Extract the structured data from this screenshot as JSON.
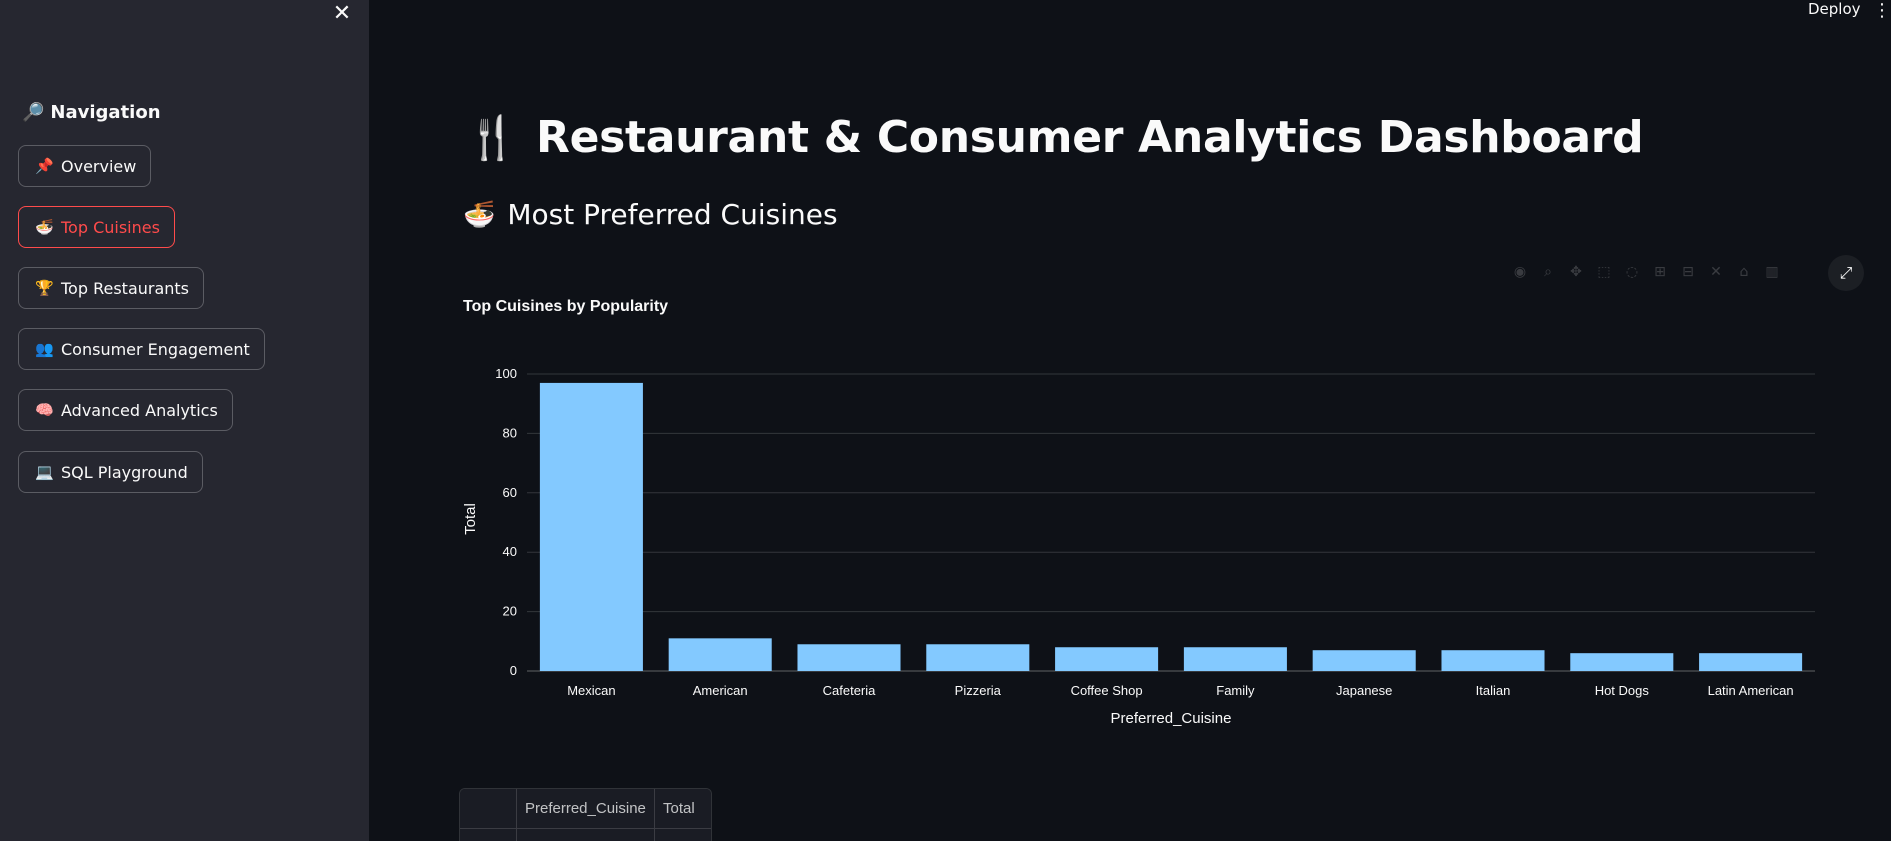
{
  "sidebar": {
    "close_icon": "✕",
    "nav_heading": "Navigation",
    "nav_heading_icon": "🔎",
    "items": [
      {
        "icon": "📌",
        "label": "Overview",
        "active": false
      },
      {
        "icon": "🍜",
        "label": "Top Cuisines",
        "active": true
      },
      {
        "icon": "🏆",
        "label": "Top Restaurants",
        "active": false
      },
      {
        "icon": "👥",
        "label": "Consumer Engagement",
        "active": false
      },
      {
        "icon": "🧠",
        "label": "Advanced Analytics",
        "active": false
      },
      {
        "icon": "💻",
        "label": "SQL Playground",
        "active": false
      }
    ]
  },
  "header": {
    "deploy_label": "Deploy",
    "menu_icon": "⋮"
  },
  "main": {
    "title_icon": "🍴",
    "title": "Restaurant & Consumer Analytics Dashboard",
    "section_icon": "🍜",
    "section_title": "Most Preferred Cuisines",
    "toolbar_icons": [
      "camera-icon",
      "zoom-icon",
      "pan-icon",
      "box-select-icon",
      "lasso-select-icon",
      "zoom-in-icon",
      "zoom-out-icon",
      "autoscale-icon",
      "home-icon",
      "plotly-logo-icon"
    ],
    "fullscreen_icon": "⤢"
  },
  "table": {
    "columns": [
      "",
      "Preferred_Cuisine",
      "Total"
    ]
  },
  "colors": {
    "bar": "#83c9ff",
    "accent": "#ff4b4b",
    "background": "#0e1117",
    "sidebar": "#262730"
  },
  "chart_data": {
    "type": "bar",
    "title": "Top Cuisines by Popularity",
    "xlabel": "Preferred_Cuisine",
    "ylabel": "Total",
    "categories": [
      "Mexican",
      "American",
      "Cafeteria",
      "Pizzeria",
      "Coffee Shop",
      "Family",
      "Japanese",
      "Italian",
      "Hot Dogs",
      "Latin American"
    ],
    "values": [
      97,
      11,
      9,
      9,
      8,
      8,
      7,
      7,
      6,
      6
    ],
    "ylim": [
      0,
      100
    ],
    "yticks": [
      0,
      20,
      40,
      60,
      80,
      100
    ],
    "grid": true
  }
}
